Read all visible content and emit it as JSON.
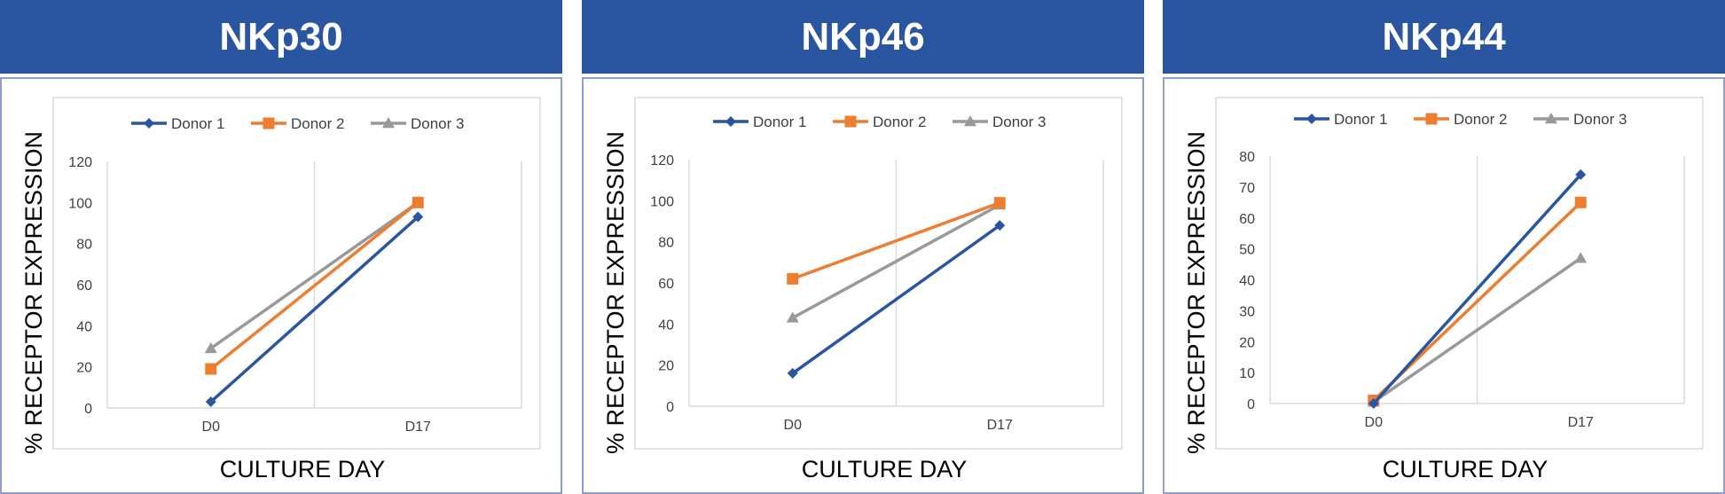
{
  "chart_data": [
    {
      "type": "line",
      "title": "NKp30",
      "xlabel": "CULTURE DAY",
      "ylabel": "% RECEPTOR EXPRESSION",
      "categories": [
        "D0",
        "D17"
      ],
      "ylim": [
        0,
        120
      ],
      "yticks": [
        "0",
        "20",
        "40",
        "60",
        "80",
        "100",
        "120"
      ],
      "grid": "vertical",
      "legend": "top",
      "series": [
        {
          "name": "Donor 1",
          "values": [
            3,
            93
          ],
          "color": "#2a55a0",
          "marker": "diamond"
        },
        {
          "name": "Donor 2",
          "values": [
            19,
            100
          ],
          "color": "#ed7d31",
          "marker": "square"
        },
        {
          "name": "Donor 3",
          "values": [
            29,
            100
          ],
          "color": "#999999",
          "marker": "triangle"
        }
      ]
    },
    {
      "type": "line",
      "title": "NKp46",
      "xlabel": "CULTURE DAY",
      "ylabel": "% RECEPTOR EXPRESSION",
      "categories": [
        "D0",
        "D17"
      ],
      "ylim": [
        0,
        120
      ],
      "yticks": [
        "0",
        "20",
        "40",
        "60",
        "80",
        "100",
        "120"
      ],
      "grid": "vertical",
      "legend": "top",
      "series": [
        {
          "name": "Donor 1",
          "values": [
            16,
            88
          ],
          "color": "#2a55a0",
          "marker": "diamond"
        },
        {
          "name": "Donor 2",
          "values": [
            62,
            99
          ],
          "color": "#ed7d31",
          "marker": "square"
        },
        {
          "name": "Donor 3",
          "values": [
            43,
            98
          ],
          "color": "#999999",
          "marker": "triangle"
        }
      ]
    },
    {
      "type": "line",
      "title": "NKp44",
      "xlabel": "CULTURE DAY",
      "ylabel": "% RECEPTOR EXPRESSION",
      "categories": [
        "D0",
        "D17"
      ],
      "ylim": [
        0,
        80
      ],
      "yticks": [
        "0",
        "10",
        "20",
        "30",
        "40",
        "50",
        "60",
        "70",
        "80"
      ],
      "grid": "vertical",
      "legend": "top",
      "series": [
        {
          "name": "Donor 1",
          "values": [
            0,
            74
          ],
          "color": "#2a55a0",
          "marker": "diamond"
        },
        {
          "name": "Donor 2",
          "values": [
            1,
            65
          ],
          "color": "#ed7d31",
          "marker": "square"
        },
        {
          "name": "Donor 3",
          "values": [
            0.5,
            47
          ],
          "color": "#999999",
          "marker": "triangle"
        }
      ]
    }
  ]
}
